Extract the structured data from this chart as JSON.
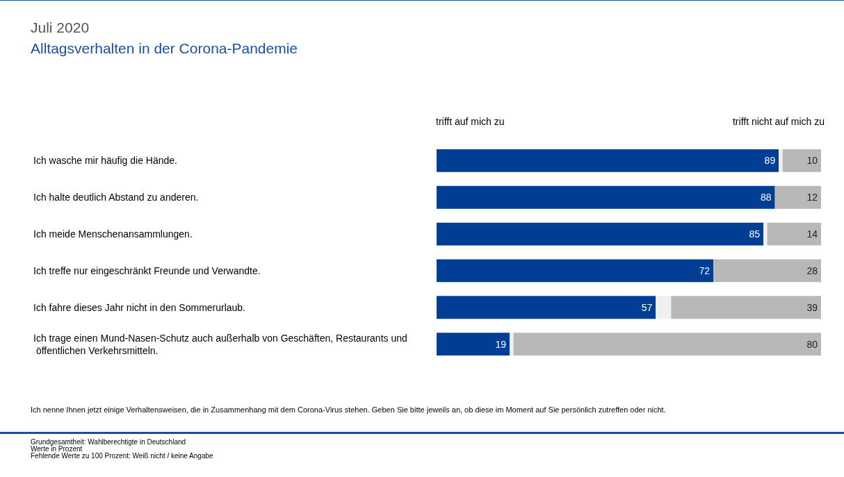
{
  "chart_data": {
    "type": "bar",
    "orientation": "horizontal",
    "title": "Juli 2020",
    "subtitle": "Alltagsverhalten in der Corona-Pandemie",
    "categories": [
      "Ich wasche mir häufig die Hände.",
      "Ich halte deutlich Abstand zu anderen.",
      "Ich meide Menschenansammlungen.",
      "Ich treffe nur eingeschränkt Freunde und Verwandte.",
      "Ich fahre dieses Jahr nicht in den Sommerurlaub.",
      "Ich trage einen Mund-Nasen-Schutz auch außerhalb von Geschäften, Restaurants und öffentlichen Verkehrsmitteln."
    ],
    "series": [
      {
        "name": "trifft auf mich zu",
        "color": "#003e95",
        "values": [
          89,
          88,
          85,
          72,
          57,
          19
        ],
        "value_labels": [
          "89",
          "88",
          "85",
          "72",
          "57",
          "19"
        ]
      },
      {
        "color": "#f0f0f0",
        "values": [
          1,
          0,
          1,
          0,
          4,
          1
        ]
      },
      {
        "name": "trifft nicht auf mich zu",
        "color": "#b8b8b8",
        "values": [
          10,
          12,
          14,
          28,
          39,
          80
        ],
        "value_labels": [
          "10",
          "12",
          "14",
          "28",
          "39",
          "80"
        ]
      }
    ],
    "xlim": [
      0,
      100
    ],
    "tick_labels": "y",
    "stacked": true,
    "legend": "top",
    "annotations": [
      "Ich nenne Ihnen jetzt einige Verhaltensweisen, die in Zusammenhang mit dem Corona-Virus stehen. Geben Sie bitte jeweils an, ob diese im Moment auf Sie persönlich zutreffen oder nicht.",
      "Grundgesamtheit: Wahlberechtigte in Deutschland",
      "Werte in Prozent",
      "Fehlende Werte zu 100 Prozent: Weiß nicht / keine Angabe"
    ]
  }
}
